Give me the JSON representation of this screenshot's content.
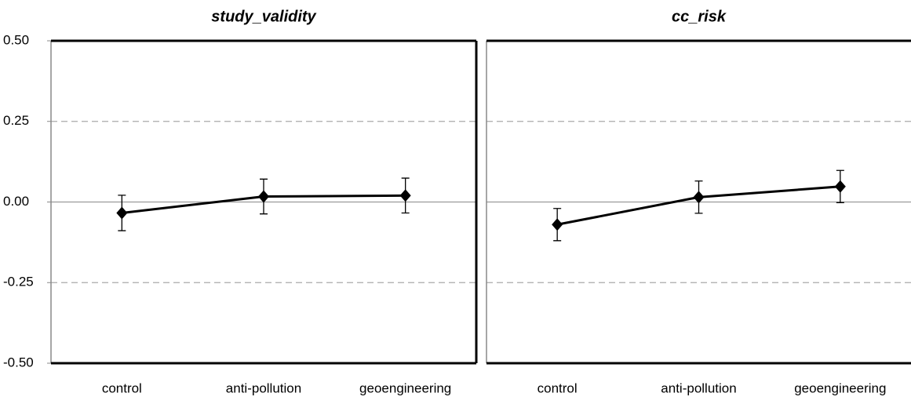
{
  "chart_data": [
    {
      "type": "line",
      "title": "study_validity",
      "categories": [
        "control",
        "anti-pollution",
        "geoengineering"
      ],
      "series": [
        {
          "color": "#000000",
          "values": [
            -0.034,
            0.017,
            0.02
          ],
          "errors": [
            0.055,
            0.054,
            0.054
          ]
        }
      ],
      "ylim": [
        -0.5,
        0.5
      ],
      "yticks": [
        {
          "value": -0.5,
          "label": "-0.50"
        },
        -0.25,
        {
          "value": 0,
          "label": "0.00"
        },
        0.25,
        {
          "value": 0.5,
          "label": "0.50"
        }
      ]
    },
    {
      "type": "line",
      "title": "cc_risk",
      "categories": [
        "control",
        "anti-pollution",
        "geoengineering"
      ],
      "series": [
        {
          "color": "#000000",
          "values": [
            -0.07,
            0.015,
            0.048
          ],
          "errors": [
            0.05,
            0.05,
            0.05
          ]
        }
      ],
      "ylim": [
        -0.5,
        0.5
      ],
      "yticks": [
        -0.5,
        -0.25,
        0,
        0.25,
        0.5
      ]
    }
  ]
}
